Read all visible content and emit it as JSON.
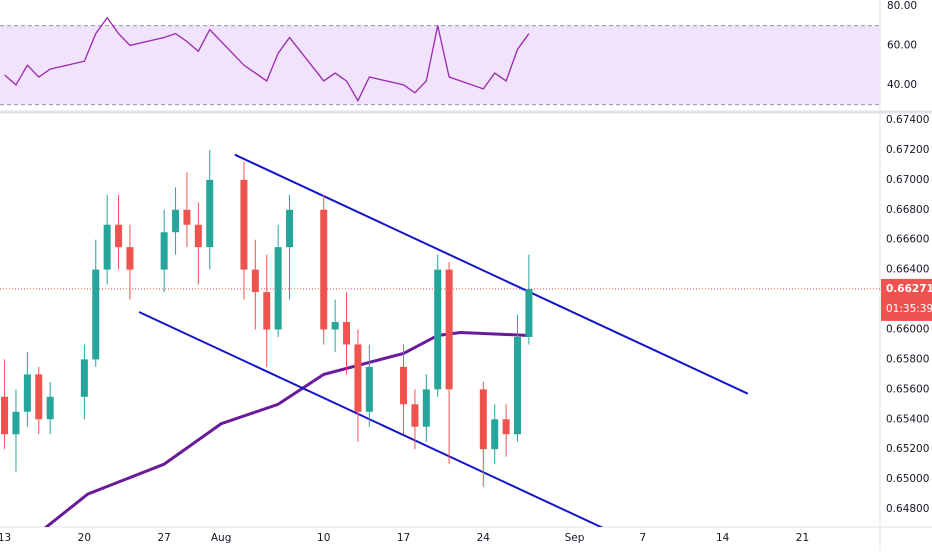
{
  "chart_data": [
    {
      "type": "rsi",
      "x": [
        0,
        1,
        2,
        3,
        4,
        7,
        8,
        9,
        10,
        11,
        14,
        15,
        16,
        17,
        18,
        21,
        22,
        23,
        24,
        25,
        28,
        29,
        30,
        31,
        32,
        35,
        36,
        37,
        38,
        39,
        42,
        43,
        44,
        45,
        46
      ],
      "values": [
        45,
        40,
        50,
        44,
        48,
        52,
        66,
        74,
        66,
        60,
        64,
        66,
        62,
        57,
        68,
        50,
        46,
        42,
        56,
        64,
        42,
        46,
        42,
        32,
        44,
        40,
        36,
        42,
        70,
        44,
        38,
        46,
        42,
        58,
        66
      ],
      "color": "#9c27b0",
      "bands": [
        30,
        70
      ],
      "band_fill": "#f1e3fc",
      "ylim": [
        28.3,
        83
      ],
      "yticks": [
        {
          "value": 80,
          "label": "80.00"
        },
        {
          "value": 60,
          "label": "60.00"
        },
        {
          "value": 40,
          "label": "40.00"
        }
      ]
    },
    {
      "type": "candlestick",
      "x": [
        0,
        1,
        2,
        3,
        4,
        7,
        8,
        9,
        10,
        11,
        14,
        15,
        16,
        17,
        18,
        21,
        22,
        23,
        24,
        25,
        28,
        29,
        30,
        31,
        32,
        35,
        36,
        37,
        38,
        39,
        42,
        43,
        44,
        45,
        46
      ],
      "open": [
        0.6555,
        0.653,
        0.6545,
        0.657,
        0.654,
        0.6555,
        0.658,
        0.664,
        0.667,
        0.6655,
        0.664,
        0.6665,
        0.668,
        0.667,
        0.6655,
        0.67,
        0.664,
        0.6625,
        0.66,
        0.6655,
        0.668,
        0.66,
        0.6605,
        0.659,
        0.6545,
        0.6575,
        0.655,
        0.6535,
        0.656,
        0.664,
        0.656,
        0.652,
        0.654,
        0.653,
        0.6595
      ],
      "high": [
        0.658,
        0.656,
        0.6585,
        0.6575,
        0.6565,
        0.659,
        0.666,
        0.669,
        0.669,
        0.667,
        0.668,
        0.6695,
        0.6705,
        0.6685,
        0.672,
        0.6712,
        0.666,
        0.665,
        0.667,
        0.669,
        0.669,
        0.662,
        0.6625,
        0.66,
        0.659,
        0.659,
        0.656,
        0.657,
        0.665,
        0.6645,
        0.6565,
        0.655,
        0.655,
        0.661,
        0.665
      ],
      "low": [
        0.652,
        0.6505,
        0.6535,
        0.653,
        0.653,
        0.654,
        0.6575,
        0.663,
        0.664,
        0.662,
        0.6625,
        0.665,
        0.6655,
        0.663,
        0.664,
        0.662,
        0.66,
        0.6575,
        0.6595,
        0.662,
        0.659,
        0.6585,
        0.657,
        0.6525,
        0.6535,
        0.653,
        0.652,
        0.6525,
        0.6555,
        0.651,
        0.6495,
        0.651,
        0.6515,
        0.6525,
        0.659
      ],
      "close": [
        0.653,
        0.6545,
        0.657,
        0.654,
        0.6555,
        0.658,
        0.664,
        0.667,
        0.6655,
        0.664,
        0.6665,
        0.668,
        0.667,
        0.6655,
        0.67,
        0.664,
        0.6625,
        0.66,
        0.6655,
        0.668,
        0.66,
        0.6605,
        0.659,
        0.6545,
        0.6575,
        0.655,
        0.6535,
        0.656,
        0.664,
        0.656,
        0.652,
        0.654,
        0.653,
        0.6595,
        0.6627
      ],
      "up_color": "#26a69a",
      "down_color": "#ef5350",
      "ma": {
        "x": [
          -1,
          3.5,
          7.3,
          14,
          19,
          24,
          28,
          35,
          38,
          40,
          46
        ],
        "values": [
          0.6458,
          0.6467,
          0.649,
          0.651,
          0.6537,
          0.655,
          0.657,
          0.6584,
          0.6596,
          0.6598,
          0.6596
        ],
        "color": "#6a1b9a"
      },
      "trendlines": [
        {
          "x": [
            20.2,
            65.2
          ],
          "values": [
            0.67168,
            0.65571
          ]
        },
        {
          "x": [
            11.8,
            52.6
          ],
          "values": [
            0.66117,
            0.6467
          ]
        }
      ],
      "trendline_color": "#1515c8",
      "last_price": {
        "value": 0.66271,
        "label": "0.66271",
        "countdown": "01:35:39",
        "color": "#ef5350"
      },
      "xlim": [
        -0.4,
        76.8
      ],
      "xticks": [
        {
          "value": 0,
          "label": "13"
        },
        {
          "value": 7,
          "label": "20"
        },
        {
          "value": 14,
          "label": "27"
        },
        {
          "value": 19,
          "label": "Aug"
        },
        {
          "value": 28,
          "label": "10"
        },
        {
          "value": 35,
          "label": "17"
        },
        {
          "value": 42,
          "label": "24"
        },
        {
          "value": 50,
          "label": "Sep"
        },
        {
          "value": 56,
          "label": "7"
        },
        {
          "value": 63,
          "label": "14"
        },
        {
          "value": 70,
          "label": "21"
        }
      ],
      "ylim": [
        0.6468,
        0.6744
      ],
      "yticks": [
        {
          "value": 0.674,
          "label": "0.67400"
        },
        {
          "value": 0.672,
          "label": "0.67200"
        },
        {
          "value": 0.67,
          "label": "0.67000"
        },
        {
          "value": 0.668,
          "label": "0.66800"
        },
        {
          "value": 0.666,
          "label": "0.66600"
        },
        {
          "value": 0.664,
          "label": "0.66400"
        },
        {
          "value": 0.662,
          "label": "0.66200"
        },
        {
          "value": 0.66,
          "label": "0.66000"
        },
        {
          "value": 0.658,
          "label": "0.65800"
        },
        {
          "value": 0.656,
          "label": "0.65600"
        },
        {
          "value": 0.654,
          "label": "0.65400"
        },
        {
          "value": 0.652,
          "label": "0.65200"
        },
        {
          "value": 0.65,
          "label": "0.65000"
        },
        {
          "value": 0.648,
          "label": "0.64800"
        }
      ]
    }
  ]
}
